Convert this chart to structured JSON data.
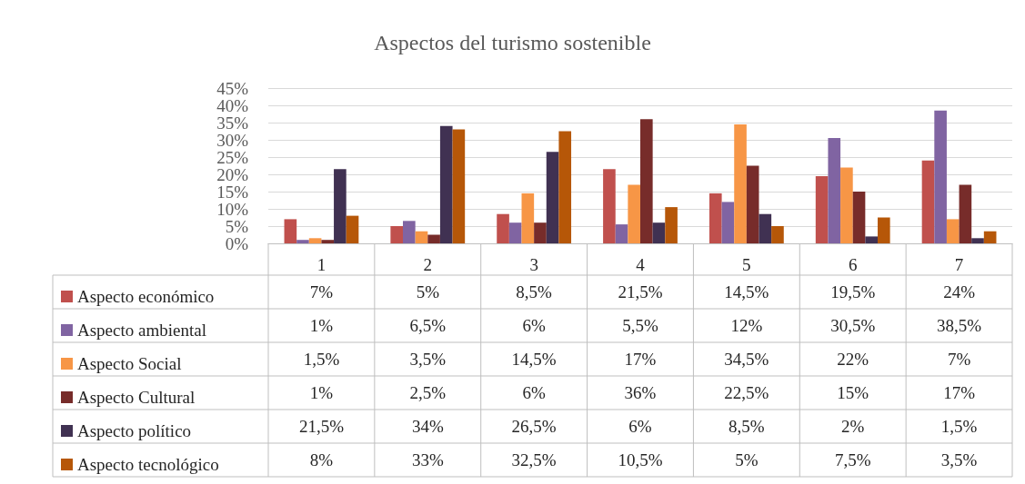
{
  "chart_data": {
    "type": "bar",
    "title": "Aspectos del turismo sostenible",
    "categories": [
      "1",
      "2",
      "3",
      "4",
      "5",
      "6",
      "7"
    ],
    "series": [
      {
        "name": "Aspecto económico",
        "color": "#c0504d",
        "values": [
          7,
          5,
          8.5,
          21.5,
          14.5,
          19.5,
          24
        ],
        "value_labels": [
          "7%",
          "5%",
          "8,5%",
          "21,5%",
          "14,5%",
          "19,5%",
          "24%"
        ]
      },
      {
        "name": "Aspecto ambiental",
        "color": "#8064a2",
        "values": [
          1,
          6.5,
          6,
          5.5,
          12,
          30.5,
          38.5
        ],
        "value_labels": [
          "1%",
          "6,5%",
          "6%",
          "5,5%",
          "12%",
          "30,5%",
          "38,5%"
        ]
      },
      {
        "name": "Aspecto Social",
        "color": "#f79646",
        "values": [
          1.5,
          3.5,
          14.5,
          17,
          34.5,
          22,
          7
        ],
        "value_labels": [
          "1,5%",
          "3,5%",
          "14,5%",
          "17%",
          "34,5%",
          "22%",
          "7%"
        ]
      },
      {
        "name": "Aspecto Cultural",
        "color": "#772c2a",
        "values": [
          1,
          2.5,
          6,
          36,
          22.5,
          15,
          17
        ],
        "value_labels": [
          "1%",
          "2,5%",
          "6%",
          "36%",
          "22,5%",
          "15%",
          "17%"
        ]
      },
      {
        "name": "Aspecto político",
        "color": "#403152",
        "values": [
          21.5,
          34,
          26.5,
          6,
          8.5,
          2,
          1.5
        ],
        "value_labels": [
          "21,5%",
          "34%",
          "26,5%",
          "6%",
          "8,5%",
          "2%",
          "1,5%"
        ]
      },
      {
        "name": "Aspecto tecnológico",
        "color": "#b65708",
        "values": [
          8,
          33,
          32.5,
          10.5,
          5,
          7.5,
          3.5
        ],
        "value_labels": [
          "8%",
          "33%",
          "32,5%",
          "10,5%",
          "5%",
          "7,5%",
          "3,5%"
        ]
      }
    ],
    "ylim": [
      0,
      45
    ],
    "yticks": [
      {
        "value": 0,
        "label": "0%"
      },
      {
        "value": 5,
        "label": "5%"
      },
      {
        "value": 10,
        "label": "10%"
      },
      {
        "value": 15,
        "label": "15%"
      },
      {
        "value": 20,
        "label": "20%"
      },
      {
        "value": 25,
        "label": "25%"
      },
      {
        "value": 30,
        "label": "30%"
      },
      {
        "value": 35,
        "label": "35%"
      },
      {
        "value": 40,
        "label": "40%"
      },
      {
        "value": 45,
        "label": "45%"
      }
    ],
    "grid": "y",
    "legend": "bottom left"
  }
}
